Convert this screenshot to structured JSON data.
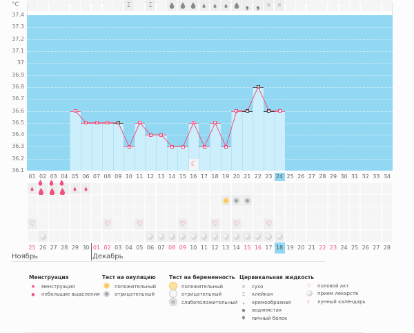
{
  "chart_data": {
    "type": "bar",
    "title": "",
    "ylabel": "°C",
    "ylim": [
      36.1,
      37.4
    ],
    "yticks": [
      "37.4",
      "37.3",
      "37.2",
      "37.1",
      "37",
      "36.9",
      "36.8",
      "36.7",
      "36.6",
      "36.5",
      "36.4",
      "36.3",
      "36.2",
      "36.1"
    ],
    "cycle_days": [
      "01",
      "02",
      "03",
      "04",
      "05",
      "06",
      "07",
      "08",
      "09",
      "10",
      "11",
      "12",
      "13",
      "14",
      "15",
      "16",
      "17",
      "18",
      "19",
      "20",
      "21",
      "22",
      "23",
      "24",
      "25",
      "26",
      "27",
      "28",
      "29",
      "30",
      "31",
      "32",
      "33",
      "34"
    ],
    "temps": [
      null,
      null,
      null,
      null,
      36.6,
      36.5,
      36.5,
      36.5,
      36.5,
      36.3,
      36.5,
      36.4,
      36.4,
      36.3,
      36.3,
      36.5,
      36.3,
      36.5,
      36.3,
      36.6,
      36.6,
      36.8,
      36.6,
      36.6
    ],
    "dark_markers": [
      9,
      21,
      22,
      23
    ],
    "today_index": 24,
    "moon_day": 16
  },
  "rows": {
    "menstruation": {
      "1": "small",
      "2": "big",
      "3": "big",
      "4": "big",
      "5": "small",
      "6": "small"
    },
    "ovulation": {
      "19": "positive",
      "20": "negative",
      "21": "negative"
    },
    "pregnancy": {},
    "sex": [
      1,
      8,
      11,
      15,
      18,
      20,
      23
    ],
    "pills": [
      2,
      12,
      13,
      14,
      15,
      16,
      17,
      18,
      19,
      20,
      21,
      22,
      23,
      24
    ],
    "cervical": {
      "10": "sticky",
      "12": "sticky",
      "14": "egg",
      "15": "egg",
      "16": "egg",
      "17": "watery",
      "18": "watery",
      "19": "watery",
      "20": "egg",
      "21": "creamy",
      "22": "creamy",
      "23": "dry",
      "24": "dry"
    }
  },
  "dates": [
    "25",
    "26",
    "27",
    "28",
    "29",
    "30",
    "01",
    "02",
    "03",
    "04",
    "05",
    "06",
    "07",
    "08",
    "09",
    "10",
    "11",
    "12",
    "13",
    "14",
    "15",
    "16",
    "17",
    "18",
    "19",
    "20",
    "21",
    "22",
    "23",
    "24",
    "25",
    "26",
    "27",
    "28"
  ],
  "red_dates": [
    0,
    6,
    7,
    13,
    14,
    20,
    21,
    27,
    28
  ],
  "months": {
    "m1": "Ноябрь",
    "m2": "Декабрь"
  },
  "legend": {
    "menstruation": {
      "title": "Менструация",
      "a": "менструация",
      "b": "небольшие выделения"
    },
    "ovulation": {
      "title": "Тест на овуляцию",
      "a": "положительный",
      "b": "отрицательный"
    },
    "pregnancy": {
      "title": "Тест на беременность",
      "a": "положительный",
      "b": "отрицательный",
      "c": "слабоположительный"
    },
    "cervical": {
      "title": "Цервикальная жидкость",
      "a": "сухо",
      "b": "клейкая",
      "c": "кремообразная",
      "d": "водянистая",
      "e": "яичный белок"
    },
    "other": {
      "a": "половой акт",
      "b": "прием лекарств",
      "c": "лунный календарь"
    }
  },
  "colors": {
    "plot": "#92d8f2",
    "bar": "#cdeefb",
    "line": "#f0507e",
    "red": "#f0507e"
  }
}
